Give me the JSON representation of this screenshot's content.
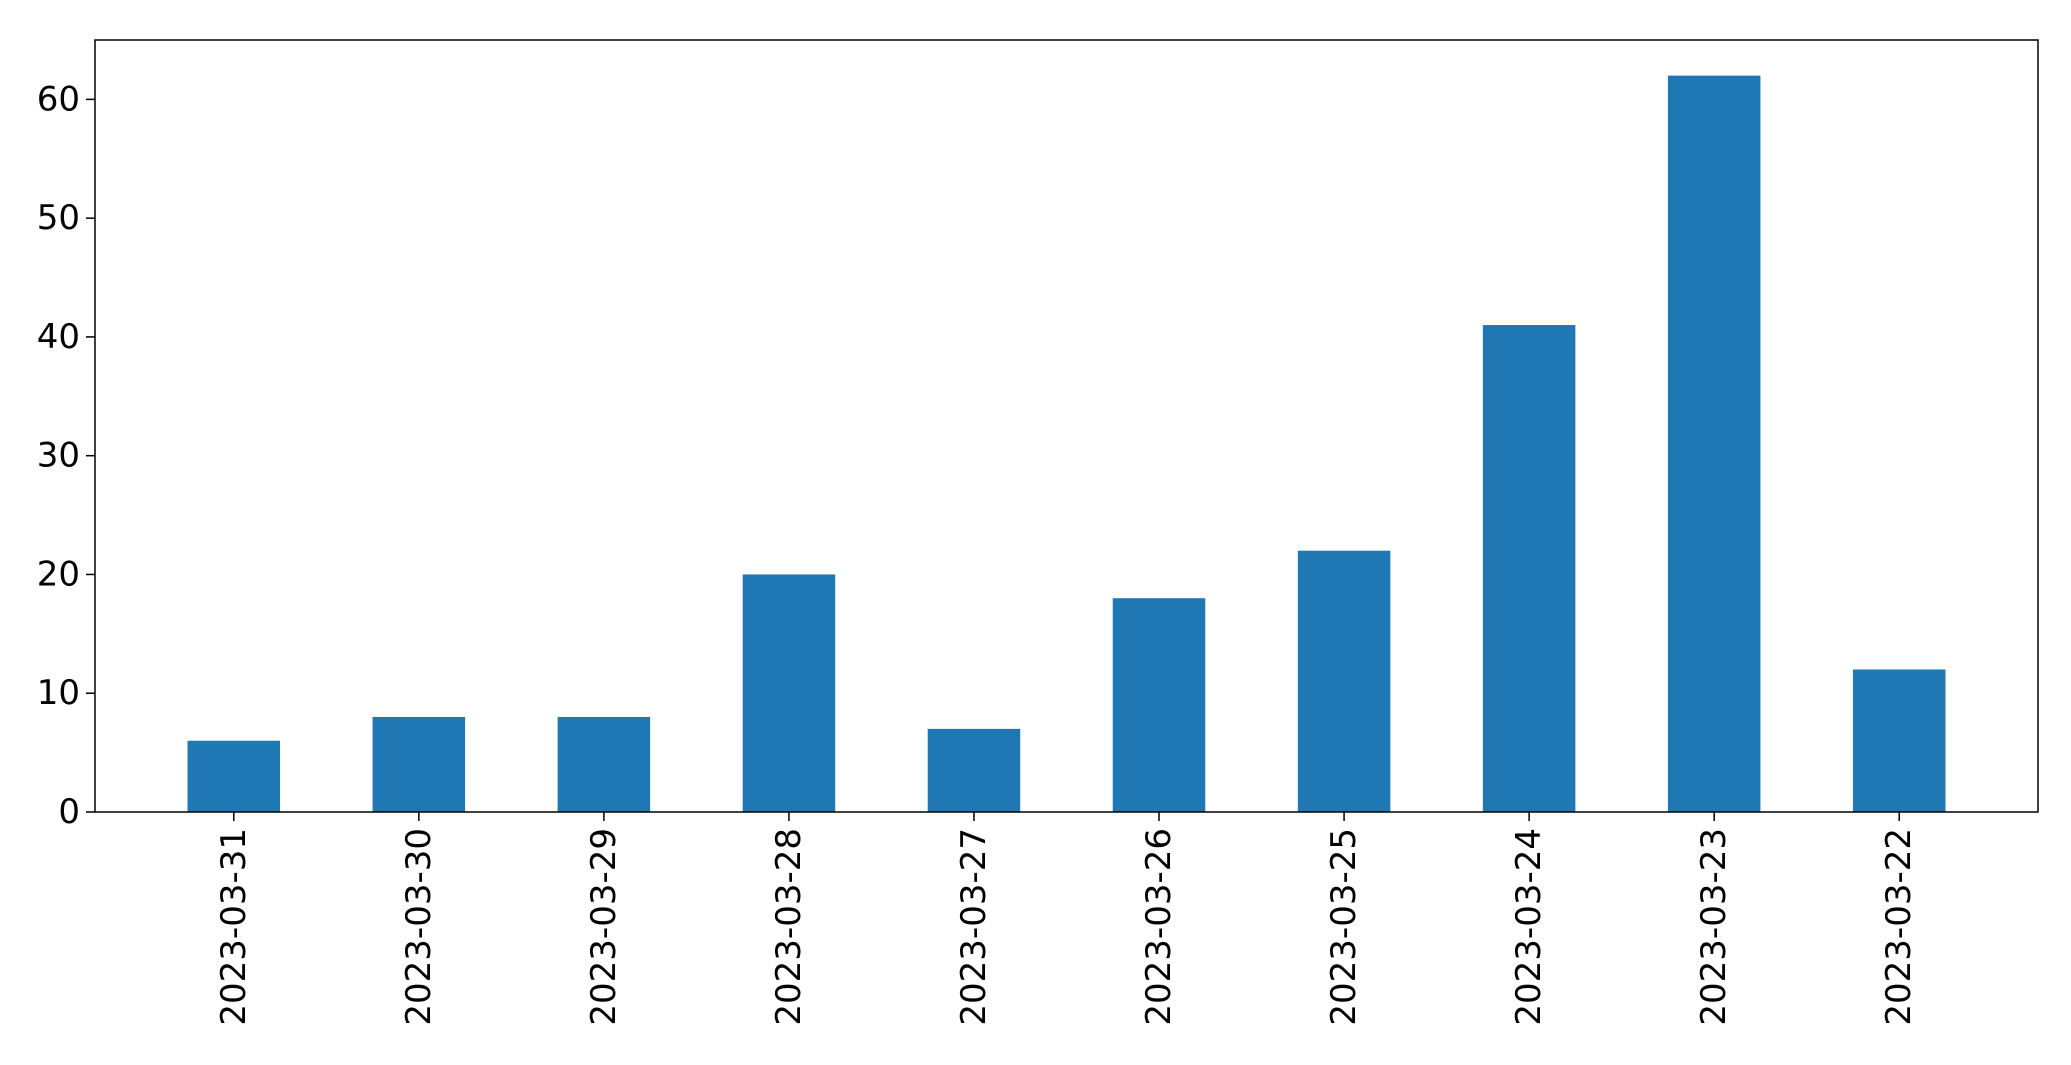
{
  "chart_data": {
    "type": "bar",
    "title": "",
    "xlabel": "",
    "ylabel": "",
    "categories": [
      "2023-03-31",
      "2023-03-30",
      "2023-03-29",
      "2023-03-28",
      "2023-03-27",
      "2023-03-26",
      "2023-03-25",
      "2023-03-24",
      "2023-03-23",
      "2023-03-22"
    ],
    "values": [
      6,
      8,
      8,
      20,
      7,
      18,
      22,
      41,
      62,
      12
    ],
    "ylim": [
      0,
      65
    ],
    "yticks": [
      0,
      10,
      20,
      30,
      40,
      50,
      60
    ],
    "grid": false,
    "legend": "none",
    "bar_color": "#1f77b4",
    "x_tick_rotation": "vertical"
  }
}
